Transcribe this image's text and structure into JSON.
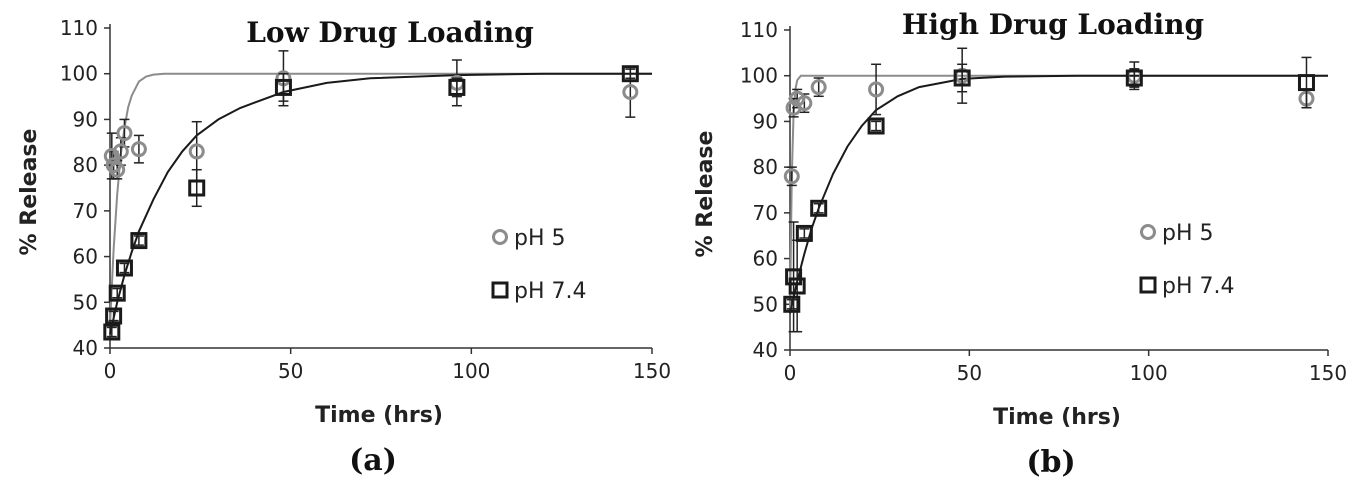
{
  "chart_data": [
    {
      "type": "scatter",
      "title": "Low Drug Loading",
      "panel_label": "(a)",
      "xlabel": "Time (hrs)",
      "ylabel": "% Release",
      "xlim": [
        0,
        150
      ],
      "ylim": [
        40,
        110
      ],
      "x_ticks": [
        "0",
        "50",
        "100",
        "150"
      ],
      "y_ticks": [
        "40",
        "50",
        "60",
        "70",
        "80",
        "90",
        "100",
        "110"
      ],
      "legend_position": "right",
      "series": [
        {
          "name": "pH 5",
          "marker": "circle",
          "color": "#8c8c8c",
          "points": [
            {
              "x": 0.5,
              "y": 82,
              "err": 5
            },
            {
              "x": 1,
              "y": 80,
              "err": 3
            },
            {
              "x": 2,
              "y": 79,
              "err": 2
            },
            {
              "x": 3,
              "y": 83,
              "err": 3
            },
            {
              "x": 4,
              "y": 87,
              "err": 3
            },
            {
              "x": 8,
              "y": 83.5,
              "err": 3
            },
            {
              "x": 24,
              "y": 83,
              "err": 6.5
            },
            {
              "x": 48,
              "y": 99,
              "err": 6
            },
            {
              "x": 96,
              "y": 98,
              "err": 5
            },
            {
              "x": 144,
              "y": 96,
              "err": 5.5
            }
          ],
          "fit": [
            [
              0,
              45
            ],
            [
              1,
              61.5
            ],
            [
              2,
              73.6
            ],
            [
              3,
              82.4
            ],
            [
              4,
              88.2
            ],
            [
              5,
              92.6
            ],
            [
              6,
              95.2
            ],
            [
              8,
              98.3
            ],
            [
              10,
              99.4
            ],
            [
              12,
              99.8
            ],
            [
              15,
              100
            ],
            [
              20,
              100
            ],
            [
              50,
              100
            ],
            [
              100,
              100
            ],
            [
              150,
              100
            ]
          ]
        },
        {
          "name": "pH 7.4",
          "marker": "square",
          "color": "#1a1a1a",
          "points": [
            {
              "x": 0.5,
              "y": 43.5,
              "err": 1
            },
            {
              "x": 1,
              "y": 47,
              "err": 1
            },
            {
              "x": 2,
              "y": 52,
              "err": 1
            },
            {
              "x": 4,
              "y": 57.5,
              "err": 1
            },
            {
              "x": 8,
              "y": 63.5,
              "err": 1
            },
            {
              "x": 24,
              "y": 75,
              "err": 4
            },
            {
              "x": 48,
              "y": 97,
              "err": 3
            },
            {
              "x": 96,
              "y": 97,
              "err": 2
            },
            {
              "x": 144,
              "y": 100,
              "err": 1
            }
          ],
          "fit": [
            [
              0,
              43
            ],
            [
              2,
              50
            ],
            [
              4,
              56
            ],
            [
              6,
              61
            ],
            [
              8,
              65.5
            ],
            [
              12,
              72.5
            ],
            [
              16,
              78.5
            ],
            [
              20,
              83
            ],
            [
              24,
              86.5
            ],
            [
              30,
              90
            ],
            [
              36,
              92.5
            ],
            [
              48,
              96
            ],
            [
              60,
              98
            ],
            [
              72,
              99
            ],
            [
              96,
              99.7
            ],
            [
              120,
              100
            ],
            [
              150,
              100
            ]
          ]
        }
      ]
    },
    {
      "type": "scatter",
      "title": "High Drug Loading",
      "panel_label": "(b)",
      "xlabel": "Time (hrs)",
      "ylabel": "% Release",
      "xlim": [
        0,
        150
      ],
      "ylim": [
        40,
        110
      ],
      "x_ticks": [
        "0",
        "50",
        "100",
        "150"
      ],
      "y_ticks": [
        "40",
        "50",
        "60",
        "70",
        "80",
        "90",
        "100",
        "110"
      ],
      "legend_position": "right",
      "series": [
        {
          "name": "pH 5",
          "marker": "circle",
          "color": "#8c8c8c",
          "points": [
            {
              "x": 0.5,
              "y": 78,
              "err": 2
            },
            {
              "x": 1,
              "y": 93,
              "err": 2
            },
            {
              "x": 2,
              "y": 95,
              "err": 2
            },
            {
              "x": 4,
              "y": 94,
              "err": 2
            },
            {
              "x": 8,
              "y": 97.5,
              "err": 2
            },
            {
              "x": 24,
              "y": 97,
              "err": 5.5
            },
            {
              "x": 48,
              "y": 100,
              "err": 6
            },
            {
              "x": 96,
              "y": 100,
              "err": 3
            },
            {
              "x": 144,
              "y": 95,
              "err": 2
            }
          ],
          "fit": [
            [
              0,
              48
            ],
            [
              0.5,
              78
            ],
            [
              1,
              92
            ],
            [
              1.5,
              97
            ],
            [
              2,
              99
            ],
            [
              3,
              100
            ],
            [
              5,
              100
            ],
            [
              150,
              100
            ]
          ]
        },
        {
          "name": "pH 7.4",
          "marker": "square",
          "color": "#1a1a1a",
          "points": [
            {
              "x": 0.5,
              "y": 50,
              "err": 1
            },
            {
              "x": 1,
              "y": 56,
              "err": 12
            },
            {
              "x": 2,
              "y": 54,
              "err": 10
            },
            {
              "x": 4,
              "y": 65.5,
              "err": 1
            },
            {
              "x": 8,
              "y": 71,
              "err": 1
            },
            {
              "x": 24,
              "y": 89,
              "err": 1
            },
            {
              "x": 48,
              "y": 99.5,
              "err": 3
            },
            {
              "x": 96,
              "y": 99.5,
              "err": 2
            },
            {
              "x": 144,
              "y": 98.5,
              "err": 5.5
            }
          ],
          "fit": [
            [
              0,
              48
            ],
            [
              2,
              55
            ],
            [
              4,
              61
            ],
            [
              6,
              66.5
            ],
            [
              8,
              71
            ],
            [
              12,
              78.5
            ],
            [
              16,
              84.5
            ],
            [
              20,
              89
            ],
            [
              24,
              92.5
            ],
            [
              30,
              95.5
            ],
            [
              36,
              97.5
            ],
            [
              48,
              99.3
            ],
            [
              60,
              99.8
            ],
            [
              80,
              100
            ],
            [
              150,
              100
            ]
          ]
        }
      ]
    }
  ]
}
